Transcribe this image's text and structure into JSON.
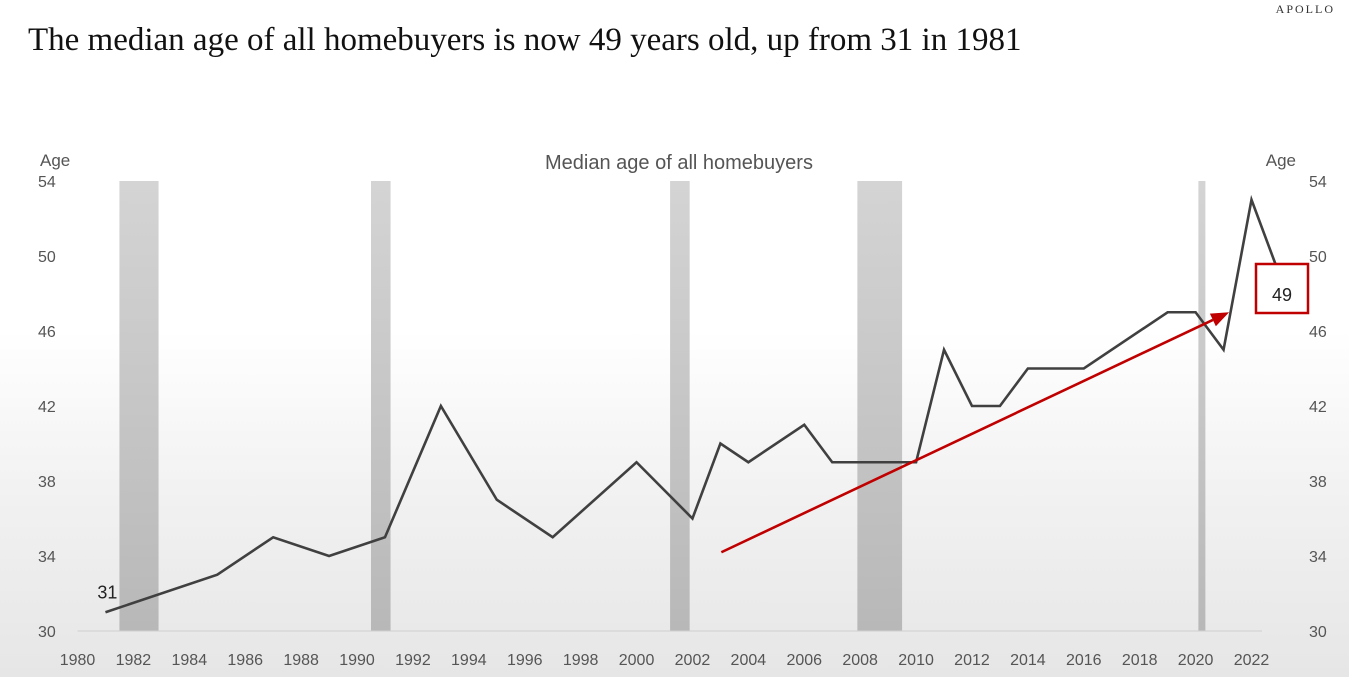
{
  "brand": "APOLLO",
  "headline": "The median age of all homebuyers is now 49 years old, up from 31 in 1981",
  "chart_data": {
    "type": "line",
    "title": "Median age of all homebuyers",
    "ylabel_left": "Age",
    "ylabel_right": "Age",
    "xlim": [
      1980,
      2023
    ],
    "ylim": [
      30,
      54
    ],
    "x_ticks": [
      1980,
      1982,
      1984,
      1986,
      1988,
      1990,
      1992,
      1994,
      1996,
      1998,
      2000,
      2002,
      2004,
      2006,
      2008,
      2010,
      2012,
      2014,
      2016,
      2018,
      2020,
      2022
    ],
    "y_ticks": [
      30,
      34,
      38,
      42,
      46,
      50,
      54
    ],
    "grid": false,
    "series": [
      {
        "color": "#404040",
        "x": [
          1981,
          1985,
          1987,
          1989,
          1991,
          1993,
          1995,
          1997,
          2000,
          2002,
          2003,
          2004,
          2006,
          2007,
          2010,
          2011,
          2012,
          2013,
          2014,
          2016,
          2019,
          2020,
          2021,
          2022,
          2023
        ],
        "values": [
          31,
          33,
          35,
          34,
          35,
          42,
          37,
          35,
          39,
          36,
          40,
          39,
          41,
          39,
          39,
          45,
          42,
          42,
          44,
          44,
          47,
          47,
          45,
          53,
          49
        ]
      }
    ],
    "recession_bands": [
      {
        "start": 1981.5,
        "end": 1982.9
      },
      {
        "start": 1990.5,
        "end": 1991.2
      },
      {
        "start": 2001.2,
        "end": 2001.9
      },
      {
        "start": 2007.9,
        "end": 2009.5
      },
      {
        "start": 2020.1,
        "end": 2020.35
      }
    ],
    "annotations": [
      {
        "label": "31",
        "x": 1981,
        "y": 31
      },
      {
        "label": "49",
        "x": 2023,
        "y": 49,
        "boxed": true,
        "box_color": "#c00000"
      }
    ],
    "trend_arrow": {
      "color": "#c00000",
      "from": [
        2004,
        34.2
      ],
      "to": [
        2021.2,
        47.0
      ]
    }
  }
}
